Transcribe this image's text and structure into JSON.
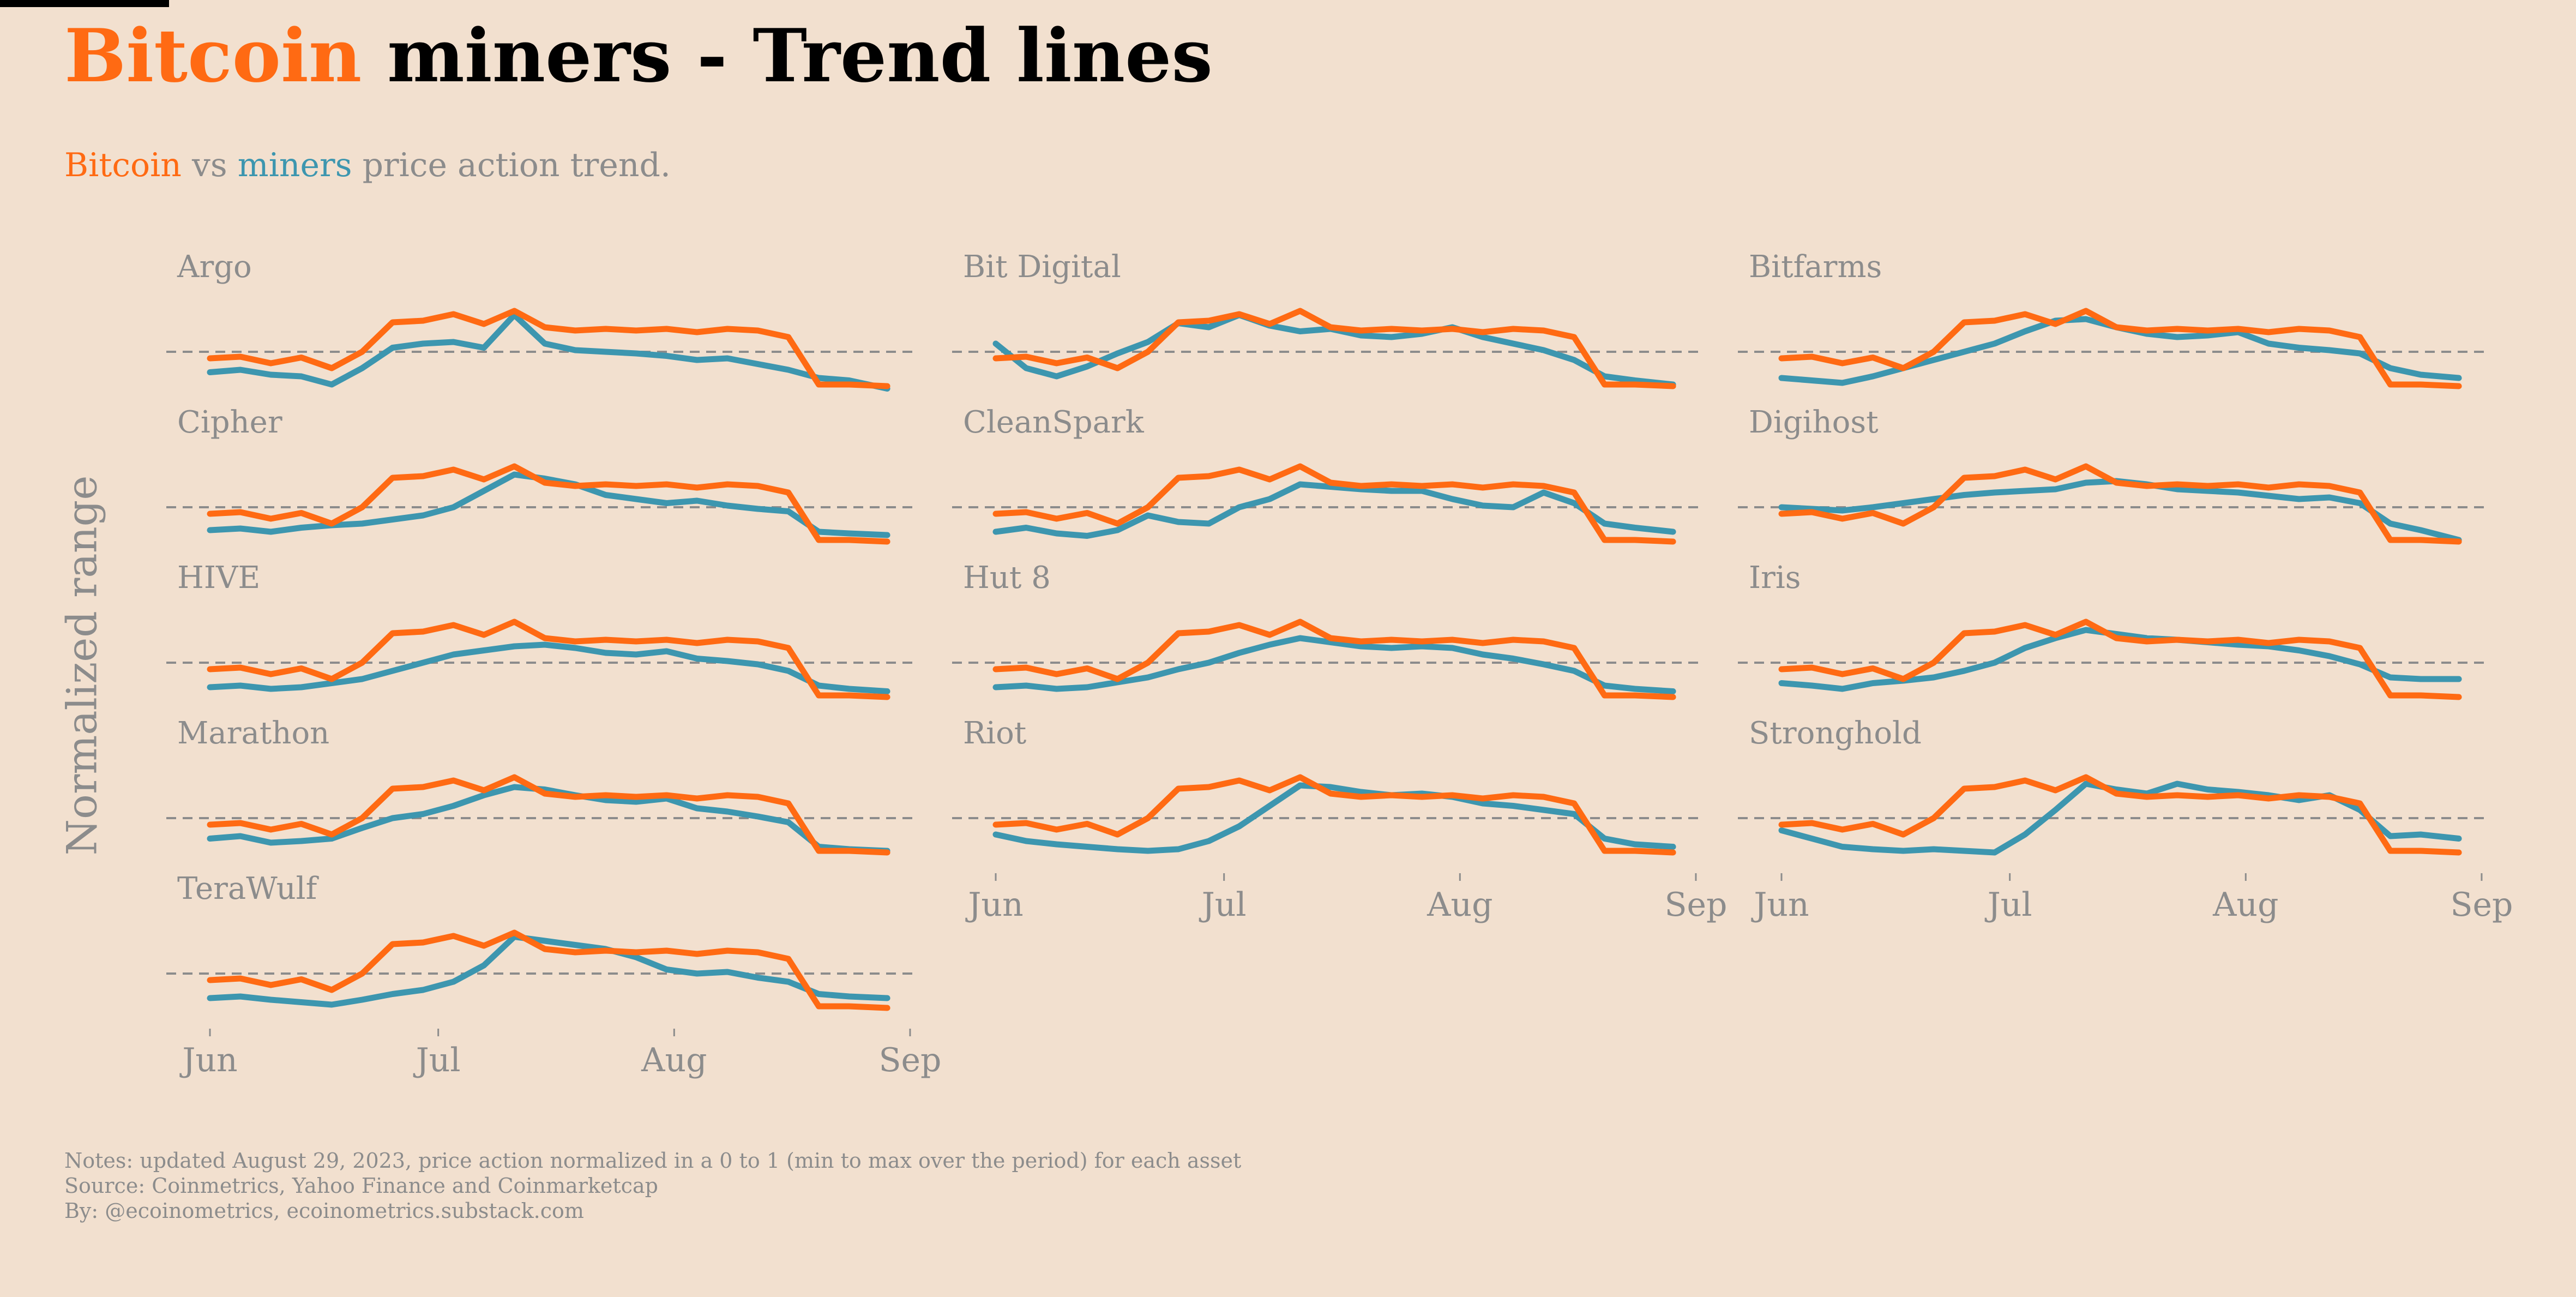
{
  "header": {
    "title_highlight": "Bitcoin",
    "title_rest": " miners - Trend lines",
    "subtitle_btc": "Bitcoin",
    "subtitle_vs": " vs ",
    "subtitle_miners": "miners",
    "subtitle_rest": " price action trend."
  },
  "notes": {
    "line1": "Notes: updated August 29, 2023, price action normalized in a 0 to 1 (min to max over the period) for each asset",
    "line2": "Source: Coinmetrics, Yahoo Finance and Coinmarketcap",
    "line3": "By: @ecoinometrics, ecoinometrics.substack.com"
  },
  "colors": {
    "background": "#F2E0CF",
    "bitcoin": "#FF6A13",
    "miners": "#3D96AF",
    "text_gray": "#8C8C8C",
    "reference_line": "#8C8C8C"
  },
  "chart_data": {
    "type": "line",
    "ylabel": "Normalized range",
    "xlabel": "",
    "x_ticks": [
      "Jun",
      "Jul",
      "Aug",
      "Sep"
    ],
    "x_range": [
      "2023-06-01",
      "2023-08-31"
    ],
    "x_dates": [
      "2023-06-01",
      "2023-06-05",
      "2023-06-09",
      "2023-06-13",
      "2023-06-17",
      "2023-06-21",
      "2023-06-25",
      "2023-06-29",
      "2023-07-03",
      "2023-07-07",
      "2023-07-11",
      "2023-07-15",
      "2023-07-19",
      "2023-07-23",
      "2023-07-27",
      "2023-07-31",
      "2023-08-04",
      "2023-08-08",
      "2023-08-12",
      "2023-08-16",
      "2023-08-20",
      "2023-08-24",
      "2023-08-29"
    ],
    "ylim": [
      0,
      1
    ],
    "reference_line_y": 0.5,
    "bitcoin_series": {
      "name": "Bitcoin",
      "values": [
        0.42,
        0.44,
        0.36,
        0.43,
        0.3,
        0.5,
        0.86,
        0.88,
        0.96,
        0.84,
        1.0,
        0.8,
        0.76,
        0.78,
        0.76,
        0.78,
        0.74,
        0.78,
        0.76,
        0.68,
        0.1,
        0.1,
        0.08
      ]
    },
    "panels": [
      {
        "name": "Argo",
        "values": [
          0.25,
          0.28,
          0.22,
          0.2,
          0.1,
          0.3,
          0.55,
          0.6,
          0.62,
          0.55,
          0.95,
          0.6,
          0.52,
          0.5,
          0.48,
          0.45,
          0.4,
          0.42,
          0.35,
          0.28,
          0.18,
          0.15,
          0.05
        ]
      },
      {
        "name": "Bit Digital",
        "values": [
          0.6,
          0.3,
          0.2,
          0.32,
          0.48,
          0.62,
          0.85,
          0.8,
          0.95,
          0.82,
          0.75,
          0.78,
          0.7,
          0.68,
          0.72,
          0.8,
          0.68,
          0.6,
          0.52,
          0.4,
          0.2,
          0.15,
          0.1
        ]
      },
      {
        "name": "Bitfarms",
        "values": [
          0.18,
          0.15,
          0.12,
          0.2,
          0.3,
          0.4,
          0.5,
          0.6,
          0.75,
          0.88,
          0.9,
          0.8,
          0.72,
          0.68,
          0.7,
          0.74,
          0.6,
          0.55,
          0.52,
          0.48,
          0.3,
          0.22,
          0.18
        ]
      },
      {
        "name": "Cipher",
        "values": [
          0.22,
          0.24,
          0.2,
          0.25,
          0.28,
          0.3,
          0.35,
          0.4,
          0.5,
          0.7,
          0.9,
          0.85,
          0.78,
          0.65,
          0.6,
          0.55,
          0.58,
          0.52,
          0.48,
          0.45,
          0.2,
          0.18,
          0.16
        ]
      },
      {
        "name": "CleanSpark",
        "values": [
          0.2,
          0.25,
          0.18,
          0.15,
          0.22,
          0.4,
          0.32,
          0.3,
          0.5,
          0.6,
          0.78,
          0.75,
          0.72,
          0.7,
          0.7,
          0.6,
          0.52,
          0.5,
          0.68,
          0.55,
          0.3,
          0.25,
          0.2
        ]
      },
      {
        "name": "Digihost",
        "values": [
          0.5,
          0.48,
          0.46,
          0.5,
          0.55,
          0.6,
          0.65,
          0.68,
          0.7,
          0.72,
          0.8,
          0.82,
          0.78,
          0.72,
          0.7,
          0.68,
          0.64,
          0.6,
          0.62,
          0.55,
          0.3,
          0.22,
          0.1
        ]
      },
      {
        "name": "HIVE",
        "values": [
          0.2,
          0.22,
          0.18,
          0.2,
          0.25,
          0.3,
          0.4,
          0.5,
          0.6,
          0.65,
          0.7,
          0.72,
          0.68,
          0.62,
          0.6,
          0.64,
          0.55,
          0.52,
          0.48,
          0.4,
          0.22,
          0.18,
          0.15
        ]
      },
      {
        "name": "Hut 8",
        "values": [
          0.2,
          0.22,
          0.18,
          0.2,
          0.26,
          0.32,
          0.42,
          0.5,
          0.62,
          0.72,
          0.8,
          0.75,
          0.7,
          0.68,
          0.7,
          0.68,
          0.6,
          0.55,
          0.48,
          0.4,
          0.22,
          0.18,
          0.15
        ]
      },
      {
        "name": "Iris",
        "values": [
          0.25,
          0.22,
          0.18,
          0.25,
          0.28,
          0.32,
          0.4,
          0.5,
          0.68,
          0.8,
          0.9,
          0.85,
          0.8,
          0.78,
          0.75,
          0.72,
          0.7,
          0.65,
          0.58,
          0.48,
          0.32,
          0.3,
          0.3
        ]
      },
      {
        "name": "Marathon",
        "values": [
          0.25,
          0.28,
          0.2,
          0.22,
          0.25,
          0.38,
          0.5,
          0.55,
          0.65,
          0.78,
          0.88,
          0.85,
          0.78,
          0.72,
          0.7,
          0.74,
          0.62,
          0.58,
          0.52,
          0.45,
          0.15,
          0.12,
          0.1
        ]
      },
      {
        "name": "Riot",
        "values": [
          0.3,
          0.22,
          0.18,
          0.15,
          0.12,
          0.1,
          0.12,
          0.22,
          0.4,
          0.65,
          0.9,
          0.88,
          0.82,
          0.78,
          0.8,
          0.76,
          0.68,
          0.65,
          0.6,
          0.55,
          0.25,
          0.18,
          0.15
        ]
      },
      {
        "name": "Stronghold",
        "values": [
          0.35,
          0.25,
          0.15,
          0.12,
          0.1,
          0.12,
          0.1,
          0.08,
          0.3,
          0.6,
          0.92,
          0.85,
          0.8,
          0.92,
          0.85,
          0.82,
          0.78,
          0.72,
          0.78,
          0.6,
          0.28,
          0.3,
          0.25
        ]
      },
      {
        "name": "TeraWulf",
        "values": [
          0.2,
          0.22,
          0.18,
          0.15,
          0.12,
          0.18,
          0.25,
          0.3,
          0.4,
          0.6,
          0.95,
          0.9,
          0.85,
          0.8,
          0.7,
          0.55,
          0.5,
          0.52,
          0.45,
          0.4,
          0.25,
          0.22,
          0.2
        ]
      }
    ]
  }
}
